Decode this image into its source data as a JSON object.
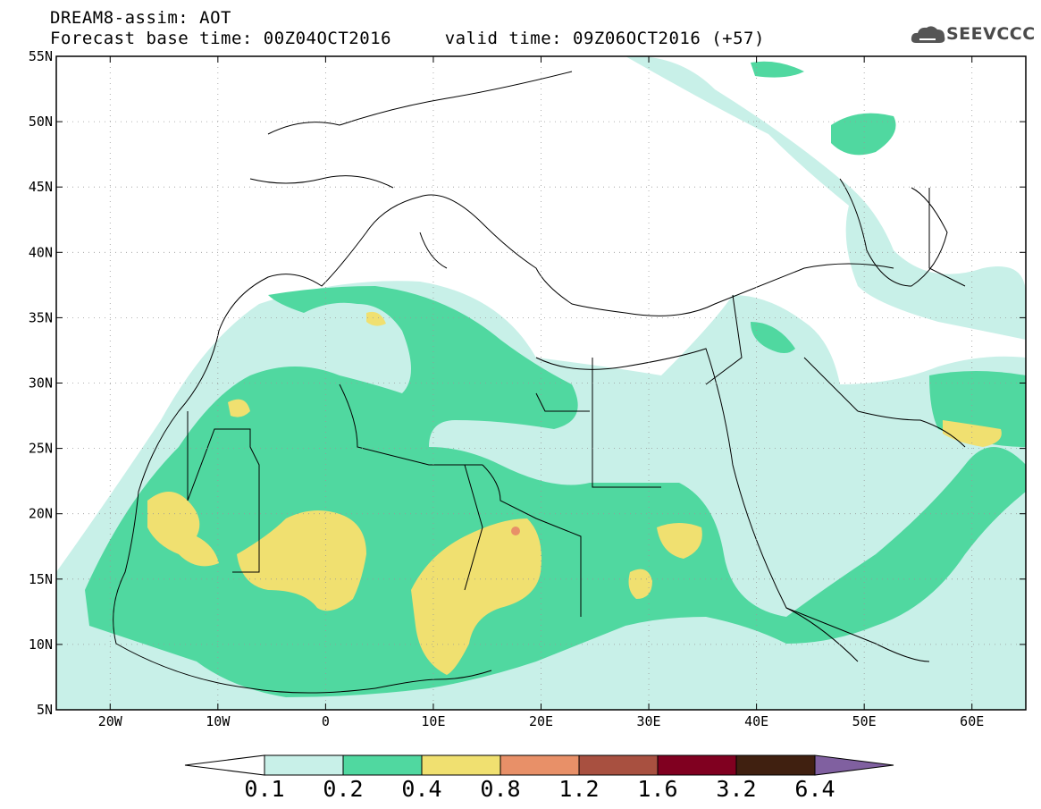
{
  "header": {
    "title_line1": "DREAM8-assim: AOT",
    "title_line2": "Forecast base time: 00Z04OCT2016     valid time: 09Z06OCT2016 (+57)"
  },
  "logo": {
    "name": "cloud-logo-icon",
    "text": "SEEVCCC"
  },
  "map": {
    "lon_range": [
      -25,
      65
    ],
    "lat_range": [
      5,
      55
    ],
    "lat_ticks": [
      {
        "value": 55,
        "label": "55N"
      },
      {
        "value": 50,
        "label": "50N"
      },
      {
        "value": 45,
        "label": "45N"
      },
      {
        "value": 40,
        "label": "40N"
      },
      {
        "value": 35,
        "label": "35N"
      },
      {
        "value": 30,
        "label": "30N"
      },
      {
        "value": 25,
        "label": "25N"
      },
      {
        "value": 20,
        "label": "20N"
      },
      {
        "value": 15,
        "label": "15N"
      },
      {
        "value": 10,
        "label": "10N"
      },
      {
        "value": 5,
        "label": "5N"
      }
    ],
    "lon_ticks": [
      {
        "value": -20,
        "label": "20W"
      },
      {
        "value": -10,
        "label": "10W"
      },
      {
        "value": 0,
        "label": "0"
      },
      {
        "value": 10,
        "label": "10E"
      },
      {
        "value": 20,
        "label": "20E"
      },
      {
        "value": 30,
        "label": "30E"
      },
      {
        "value": 40,
        "label": "40E"
      },
      {
        "value": 50,
        "label": "50E"
      },
      {
        "value": 60,
        "label": "60E"
      }
    ],
    "grid": "dotted"
  },
  "legend": {
    "colors": [
      "#ffffff",
      "#c8f0e8",
      "#50d8a0",
      "#f0e070",
      "#e89068",
      "#a85040",
      "#800020",
      "#402010",
      "#8060a0"
    ],
    "labels": [
      "0.1",
      "0.2",
      "0.4",
      "0.8",
      "1.2",
      "1.6",
      "3.2",
      "6.4"
    ]
  }
}
